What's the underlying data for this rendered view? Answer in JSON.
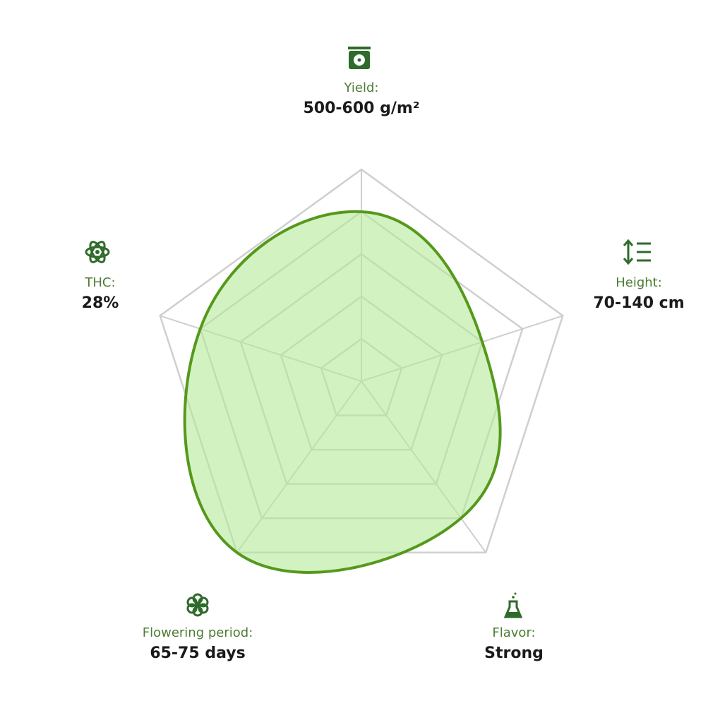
{
  "chart_data": {
    "type": "radar",
    "categories": [
      "Yield:",
      "Height:",
      "Flavor:",
      "Flowering period:",
      "THC:"
    ],
    "category_values": [
      "500-600 g/m²",
      "70-140 cm",
      "Strong",
      "65-75 days",
      "28%"
    ],
    "values": [
      4,
      3,
      4,
      5,
      4
    ],
    "rlim": [
      0,
      5
    ],
    "rticks": [
      1,
      2,
      3,
      4,
      5
    ],
    "color": "#55991c",
    "fill": "#b6ea98",
    "grid": true
  }
}
